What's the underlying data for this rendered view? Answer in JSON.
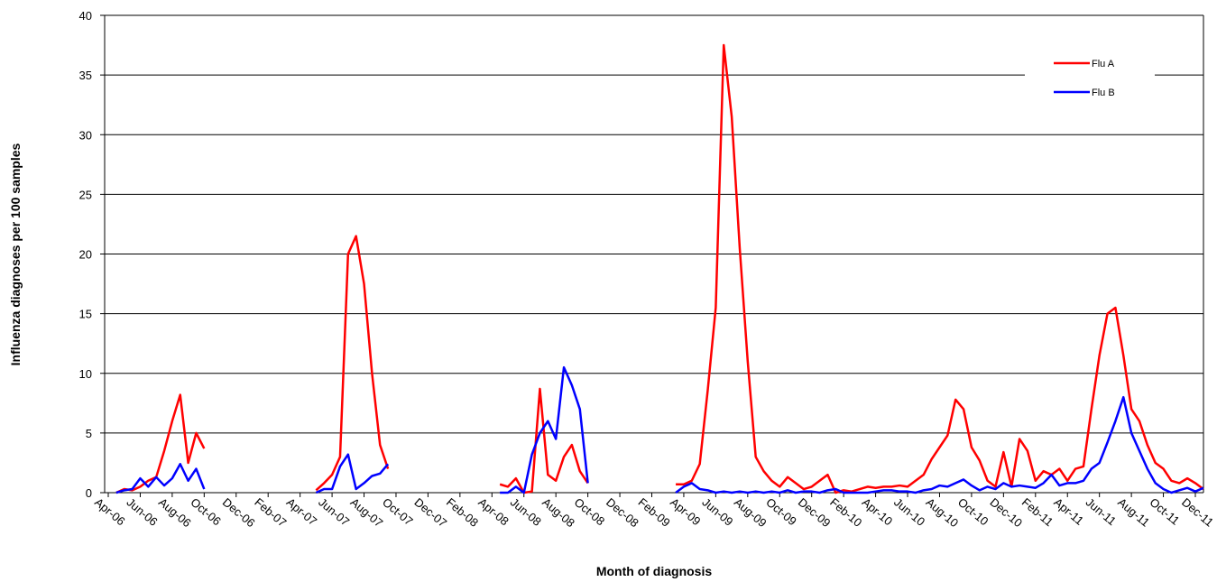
{
  "chart_data": {
    "type": "line",
    "x_label": "Month of diagnosis",
    "y_label": "Influenza diagnoses  per 100 samples",
    "categories": [
      "Apr-06",
      null,
      null,
      null,
      "Jun-06",
      null,
      null,
      null,
      "Aug-06",
      null,
      null,
      null,
      "Oct-06",
      null,
      null,
      null,
      "Dec-06",
      null,
      null,
      null,
      "Feb-07",
      null,
      null,
      null,
      "Apr-07",
      null,
      null,
      null,
      "Jun-07",
      null,
      null,
      null,
      "Aug-07",
      null,
      null,
      null,
      "Oct-07",
      null,
      null,
      null,
      "Dec-07",
      null,
      null,
      null,
      "Feb-08",
      null,
      null,
      null,
      "Apr-08",
      null,
      null,
      null,
      "Jun-08",
      null,
      null,
      null,
      "Aug-08",
      null,
      null,
      null,
      "Oct-08",
      null,
      null,
      null,
      "Dec-08",
      null,
      null,
      null,
      "Feb-09",
      null,
      null,
      null,
      "Apr-09",
      null,
      null,
      null,
      "Jun-09",
      null,
      null,
      null,
      "Aug-09",
      null,
      null,
      null,
      "Oct-09",
      null,
      null,
      null,
      "Dec-09",
      null,
      null,
      null,
      "Feb-10",
      null,
      null,
      null,
      "Apr-10",
      null,
      null,
      null,
      "Jun-10",
      null,
      null,
      null,
      "Aug-10",
      null,
      null,
      null,
      "Oct-10",
      null,
      null,
      null,
      "Dec-10",
      null,
      null,
      null,
      "Feb-11",
      null,
      null,
      null,
      "Apr-11",
      null,
      null,
      null,
      "Jun-11",
      null,
      null,
      null,
      "Aug-11",
      null,
      null,
      null,
      "Oct-11",
      null,
      null,
      null,
      "Dec-11",
      null
    ],
    "series": [
      {
        "name": "Flu A",
        "color": "#ff0000",
        "values": [
          null,
          0,
          0.3,
          0.2,
          0.5,
          1,
          1.3,
          3.5,
          6,
          8.2,
          2.5,
          5,
          3.7,
          null,
          null,
          null,
          null,
          null,
          null,
          null,
          null,
          null,
          null,
          null,
          null,
          null,
          0.2,
          0.8,
          1.5,
          3,
          20,
          21.5,
          17.5,
          10,
          4,
          2,
          null,
          null,
          null,
          null,
          null,
          null,
          null,
          null,
          null,
          null,
          null,
          null,
          null,
          0.7,
          0.5,
          1.2,
          0,
          0.1,
          8.7,
          1.5,
          1,
          3,
          4,
          1.8,
          0.8,
          null,
          null,
          null,
          null,
          null,
          null,
          null,
          null,
          null,
          null,
          0.7,
          0.7,
          1,
          2.4,
          8.6,
          15.5,
          37.5,
          31.5,
          20.5,
          11,
          3,
          1.8,
          1,
          0.5,
          1.3,
          0.8,
          0.3,
          0.5,
          1,
          1.5,
          0,
          0.2,
          0.1,
          0.3,
          0.5,
          0.4,
          0.5,
          0.5,
          0.6,
          0.5,
          1,
          1.5,
          2.8,
          3.8,
          4.8,
          7.8,
          7,
          3.8,
          2.7,
          1,
          0.5,
          3.4,
          0.5,
          4.5,
          3.5,
          1,
          1.8,
          1.5,
          2,
          1,
          2,
          2.2,
          7,
          11.5,
          15,
          15.5,
          11.5,
          7,
          6,
          4,
          2.5,
          2,
          1,
          0.8,
          1.2,
          0.8,
          0.3
        ]
      },
      {
        "name": "Flu B",
        "color": "#0000ff",
        "values": [
          null,
          0,
          0.2,
          0.3,
          1.2,
          0.5,
          1.3,
          0.6,
          1.2,
          2.4,
          1,
          2,
          0.3,
          null,
          null,
          null,
          null,
          null,
          null,
          null,
          null,
          null,
          null,
          null,
          null,
          null,
          0,
          0.3,
          0.3,
          2.2,
          3.2,
          0.3,
          0.8,
          1.4,
          1.6,
          2.4,
          null,
          null,
          null,
          null,
          null,
          null,
          null,
          null,
          null,
          null,
          null,
          null,
          null,
          0,
          0,
          0.5,
          0,
          3.2,
          5,
          6,
          4.5,
          10.5,
          9,
          7,
          0.8,
          null,
          null,
          null,
          null,
          null,
          null,
          null,
          null,
          null,
          null,
          0,
          0.5,
          0.8,
          0.3,
          0.2,
          0,
          0.1,
          0,
          0.1,
          0,
          0.1,
          0,
          0.1,
          0,
          0.2,
          0,
          0.1,
          0.1,
          0,
          0.2,
          0.3,
          0,
          0,
          0,
          0,
          0.1,
          0.2,
          0.2,
          0.1,
          0.1,
          0,
          0.2,
          0.3,
          0.6,
          0.5,
          0.8,
          1.1,
          0.6,
          0.2,
          0.5,
          0.3,
          0.8,
          0.5,
          0.6,
          0.5,
          0.4,
          0.8,
          1.5,
          0.6,
          0.8,
          0.8,
          1,
          2,
          2.5,
          4.2,
          6,
          8,
          5,
          3.5,
          2,
          0.8,
          0.3,
          0,
          0.2,
          0.4,
          0.1,
          0.4
        ]
      }
    ],
    "ylim": [
      0,
      40
    ],
    "yticks": [
      0,
      5,
      10,
      15,
      20,
      25,
      30,
      35,
      40
    ],
    "grid": true,
    "legend": "top-right"
  }
}
